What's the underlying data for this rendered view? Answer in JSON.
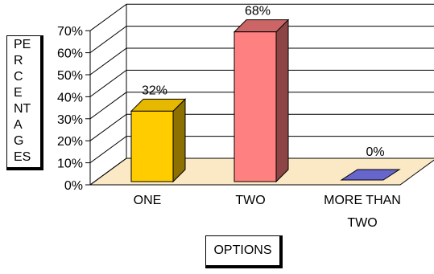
{
  "chart_data": {
    "type": "bar",
    "categories": [
      "ONE",
      "TWO",
      "MORE THAN TWO"
    ],
    "category_label_lines": [
      [
        "ONE"
      ],
      [
        "TWO"
      ],
      [
        "MORE THAN",
        "TWO"
      ]
    ],
    "values": [
      32,
      68,
      0
    ],
    "data_labels": [
      "32%",
      "68%",
      "0%"
    ],
    "ylabel": "PERCENTAGES",
    "xlabel": "OPTIONS",
    "ylim": [
      0,
      70
    ],
    "yticks": [
      0,
      10,
      20,
      30,
      40,
      50,
      60,
      70
    ],
    "ytick_labels": [
      "0%",
      "10%",
      "20%",
      "30%",
      "40%",
      "50%",
      "60%",
      "70%"
    ],
    "grid": true,
    "legend": "none",
    "style": "3d",
    "colors": {
      "bars": [
        "#ffcc00",
        "#ff8080",
        "#6666cc"
      ],
      "bar_tops": [
        "#e6b800",
        "#cc6666",
        "#5050b0"
      ],
      "bar_sides": [
        "#8c7000",
        "#8c4444",
        "#33337a"
      ],
      "floor": "#fbe8c4",
      "gridline": "#000000"
    }
  }
}
